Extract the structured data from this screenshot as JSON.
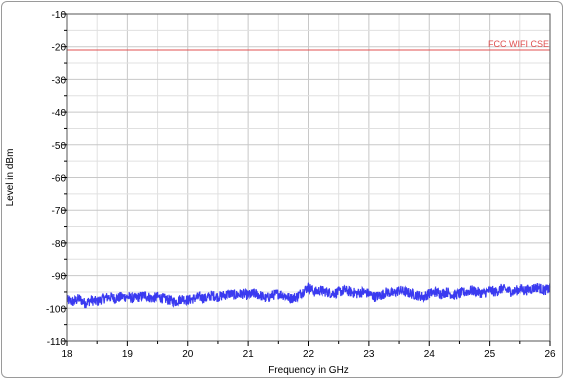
{
  "chart_data": {
    "type": "line",
    "xlabel": "Frequency in GHz",
    "ylabel": "Level in dBm",
    "xlim": [
      18,
      26
    ],
    "ylim": [
      -110,
      -10
    ],
    "x_ticks": [
      18,
      19,
      20,
      21,
      22,
      23,
      24,
      25,
      26
    ],
    "y_ticks": [
      -10,
      -20,
      -30,
      -40,
      -50,
      -60,
      -70,
      -80,
      -90,
      -100,
      -110
    ],
    "grid": true,
    "limit_line": {
      "name": "FCC WIFI CSE",
      "value": -21,
      "color": "#e05050"
    },
    "series": [
      {
        "color": "#3a3af0",
        "x": [
          18.0,
          18.1,
          18.2,
          18.3,
          18.4,
          18.5,
          18.6,
          18.7,
          18.8,
          18.9,
          19.0,
          19.1,
          19.2,
          19.3,
          19.4,
          19.5,
          19.6,
          19.7,
          19.8,
          19.9,
          20.0,
          20.1,
          20.2,
          20.3,
          20.4,
          20.5,
          20.6,
          20.7,
          20.8,
          20.9,
          21.0,
          21.1,
          21.2,
          21.3,
          21.4,
          21.5,
          21.6,
          21.7,
          21.8,
          21.9,
          22.0,
          22.1,
          22.2,
          22.3,
          22.4,
          22.5,
          22.6,
          22.7,
          22.8,
          22.9,
          23.0,
          23.1,
          23.2,
          23.3,
          23.4,
          23.5,
          23.6,
          23.7,
          23.8,
          23.9,
          24.0,
          24.1,
          24.2,
          24.3,
          24.4,
          24.5,
          24.6,
          24.7,
          24.8,
          24.9,
          25.0,
          25.1,
          25.2,
          25.3,
          25.4,
          25.5,
          25.6,
          25.7,
          25.8,
          25.9,
          26.0
        ],
        "values": [
          -97.5,
          -98.0,
          -97.0,
          -98.5,
          -97.5,
          -98.0,
          -97.0,
          -96.5,
          -97.0,
          -96.5,
          -96.5,
          -97.0,
          -96.5,
          -96.0,
          -97.0,
          -96.5,
          -97.0,
          -97.5,
          -98.0,
          -97.0,
          -97.5,
          -97.0,
          -96.5,
          -97.0,
          -96.0,
          -96.5,
          -96.0,
          -95.5,
          -96.0,
          -95.5,
          -96.0,
          -95.5,
          -96.0,
          -97.0,
          -96.0,
          -95.5,
          -96.0,
          -97.0,
          -96.5,
          -95.0,
          -93.5,
          -95.0,
          -94.5,
          -95.0,
          -95.5,
          -95.0,
          -94.5,
          -95.0,
          -95.5,
          -95.0,
          -95.5,
          -96.5,
          -96.0,
          -95.0,
          -95.5,
          -94.5,
          -95.0,
          -95.5,
          -96.0,
          -96.5,
          -95.5,
          -95.0,
          -95.5,
          -95.0,
          -96.0,
          -95.5,
          -95.0,
          -94.5,
          -95.0,
          -95.5,
          -94.5,
          -95.0,
          -94.0,
          -94.5,
          -95.0,
          -94.0,
          -94.5,
          -94.0,
          -93.5,
          -94.5,
          -94.0
        ]
      }
    ]
  }
}
